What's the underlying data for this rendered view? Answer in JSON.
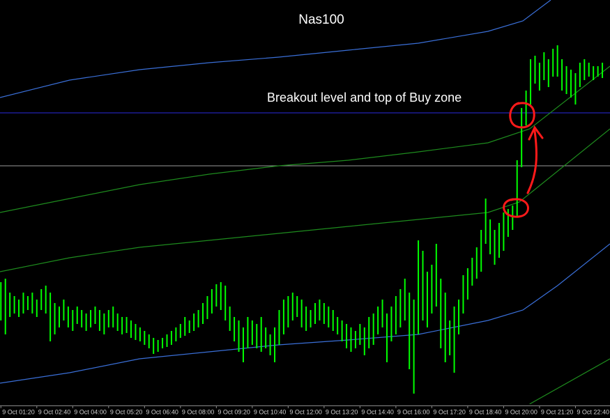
{
  "chart_data": {
    "type": "hilo",
    "title": "Nas100",
    "annotation": "Breakout level and top of Buy zone",
    "xlim": [
      78,
      1437
    ],
    "ylim": [
      0,
      580
    ],
    "xticks": [
      {
        "value": 80,
        "label": "9 Oct 01:20"
      },
      {
        "value": 160,
        "label": "9 Oct 02:40"
      },
      {
        "value": 240,
        "label": "9 Oct 04:00"
      },
      {
        "value": 320,
        "label": "9 Oct 05:20"
      },
      {
        "value": 400,
        "label": "9 Oct 06:40"
      },
      {
        "value": 480,
        "label": "9 Oct 08:00"
      },
      {
        "value": 560,
        "label": "9 Oct 09:20"
      },
      {
        "value": 640,
        "label": "9 Oct 10:40"
      },
      {
        "value": 720,
        "label": "9 Oct 12:00"
      },
      {
        "value": 800,
        "label": "9 Oct 13:20"
      },
      {
        "value": 880,
        "label": "9 Oct 14:40"
      },
      {
        "value": 960,
        "label": "9 Oct 16:00"
      },
      {
        "value": 1040,
        "label": "9 Oct 17:20"
      },
      {
        "value": 1120,
        "label": "9 Oct 18:40"
      },
      {
        "value": 1200,
        "label": "9 Oct 20:00"
      },
      {
        "value": 1280,
        "label": "9 Oct 21:20"
      },
      {
        "value": 1360,
        "label": "9 Oct 22:40"
      }
    ],
    "bars": {
      "color": "#00ff00",
      "x": [
        80,
        90,
        100,
        110,
        120,
        130,
        140,
        150,
        160,
        170,
        180,
        190,
        200,
        210,
        220,
        230,
        240,
        250,
        260,
        270,
        280,
        290,
        300,
        310,
        320,
        330,
        340,
        350,
        360,
        370,
        380,
        390,
        400,
        410,
        420,
        430,
        440,
        450,
        460,
        470,
        480,
        490,
        500,
        510,
        520,
        530,
        540,
        550,
        560,
        570,
        580,
        590,
        600,
        610,
        620,
        630,
        640,
        650,
        660,
        670,
        680,
        690,
        700,
        710,
        720,
        730,
        740,
        750,
        760,
        770,
        780,
        790,
        800,
        810,
        820,
        830,
        840,
        850,
        860,
        870,
        880,
        890,
        900,
        910,
        920,
        930,
        940,
        950,
        960,
        970,
        980,
        990,
        1000,
        1010,
        1020,
        1030,
        1040,
        1050,
        1060,
        1070,
        1080,
        1090,
        1100,
        1110,
        1120,
        1130,
        1140,
        1150,
        1160,
        1170,
        1180,
        1190,
        1200,
        1210,
        1220,
        1230,
        1240,
        1250,
        1260,
        1270,
        1280,
        1290,
        1300,
        1310,
        1320,
        1330,
        1340,
        1350,
        1360,
        1370,
        1380,
        1390,
        1400,
        1410,
        1420
      ],
      "high": [
        175,
        180,
        160,
        155,
        150,
        160,
        155,
        160,
        150,
        165,
        170,
        160,
        145,
        140,
        150,
        140,
        135,
        140,
        135,
        130,
        135,
        140,
        135,
        130,
        135,
        140,
        130,
        125,
        125,
        120,
        115,
        110,
        105,
        100,
        95,
        92,
        95,
        100,
        105,
        110,
        115,
        125,
        120,
        130,
        135,
        145,
        155,
        165,
        172,
        175,
        170,
        140,
        125,
        120,
        110,
        125,
        120,
        115,
        125,
        110,
        100,
        110,
        135,
        150,
        155,
        160,
        155,
        150,
        140,
        135,
        145,
        150,
        145,
        140,
        135,
        125,
        120,
        115,
        110,
        105,
        115,
        110,
        125,
        130,
        140,
        150,
        130,
        140,
        155,
        165,
        180,
        160,
        150,
        235,
        220,
        190,
        200,
        230,
        180,
        160,
        120,
        140,
        150,
        185,
        195,
        210,
        225,
        250,
        295,
        265,
        250,
        260,
        275,
        280,
        285,
        350,
        425,
        450,
        495,
        500,
        490,
        505,
        495,
        510,
        515,
        495,
        485,
        480,
        475,
        490,
        495,
        490,
        485,
        485,
        490
      ],
      "low": [
        120,
        100,
        125,
        130,
        125,
        130,
        135,
        130,
        125,
        135,
        130,
        90,
        100,
        110,
        120,
        110,
        105,
        115,
        110,
        105,
        110,
        115,
        105,
        100,
        110,
        110,
        105,
        100,
        102,
        95,
        92,
        90,
        85,
        80,
        72,
        75,
        80,
        82,
        85,
        90,
        95,
        98,
        102,
        105,
        110,
        115,
        122,
        130,
        140,
        135,
        120,
        105,
        90,
        75,
        60,
        80,
        85,
        80,
        75,
        80,
        70,
        60,
        85,
        100,
        110,
        120,
        125,
        110,
        105,
        110,
        115,
        120,
        115,
        110,
        105,
        100,
        90,
        80,
        75,
        80,
        85,
        70,
        80,
        85,
        100,
        110,
        60,
        90,
        100,
        110,
        120,
        50,
        15,
        100,
        120,
        110,
        130,
        140,
        80,
        60,
        70,
        45,
        100,
        130,
        150,
        170,
        180,
        190,
        230,
        215,
        200,
        210,
        220,
        240,
        250,
        270,
        340,
        400,
        430,
        460,
        450,
        465,
        455,
        470,
        470,
        450,
        445,
        440,
        430,
        455,
        465,
        470,
        465,
        470,
        468
      ]
    },
    "lines": [
      {
        "color": "#3a6fd8",
        "x": [
          78,
          233,
          389,
          544,
          699,
          854,
          1010,
          1165,
          1243,
          1305
        ],
        "values": [
          440,
          465,
          480,
          490,
          498,
          508,
          518,
          535,
          550,
          580
        ]
      },
      {
        "color": "#3a6fd8",
        "x": [
          78,
          233,
          389,
          544,
          699,
          854,
          1010,
          1165,
          1243,
          1320,
          1437
        ],
        "values": [
          30,
          45,
          65,
          75,
          85,
          92,
          100,
          120,
          135,
          170,
          230
        ]
      },
      {
        "color": "#1e8c1e",
        "x": [
          78,
          233,
          389,
          544,
          699,
          854,
          1010,
          1165,
          1258,
          1437
        ],
        "values": [
          275,
          295,
          315,
          330,
          342,
          350,
          362,
          375,
          395,
          485
        ]
      },
      {
        "color": "#1e8c1e",
        "x": [
          78,
          233,
          389,
          544,
          699,
          854,
          1010,
          1165,
          1235,
          1437
        ],
        "values": [
          190,
          210,
          225,
          235,
          245,
          255,
          265,
          275,
          290,
          395
        ]
      },
      {
        "color": "#1e8c1e",
        "x": [
          1258,
          1437
        ],
        "values": [
          0,
          65
        ]
      }
    ],
    "hlines": [
      {
        "value": 418,
        "color": "#2a2ae0"
      },
      {
        "value": 342,
        "color": "#9a9a9a"
      }
    ]
  }
}
